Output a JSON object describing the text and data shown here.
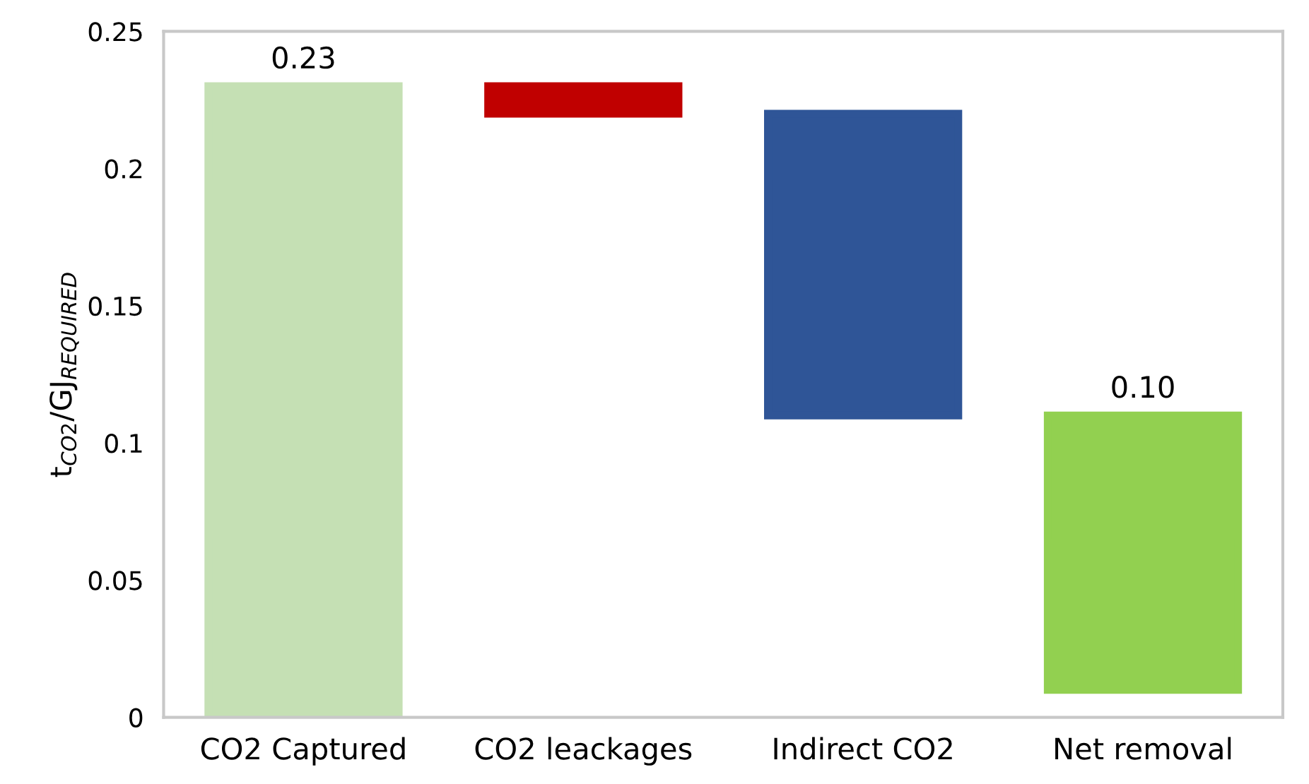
{
  "chart_data": {
    "type": "bar",
    "ylabel": "t$_{CO2}$/GJ$_{REQUIRED}$",
    "categories": [
      "CO2 Captured",
      "CO2 leackages",
      "Indirect CO2",
      "Net removal"
    ],
    "values": [
      0.23,
      0.01,
      0.11,
      0.1
    ],
    "base": [
      0,
      0.22,
      0.11,
      0.01
    ],
    "colors": [
      "#c5e0b4",
      "#c00000",
      "#2f5597",
      "#92d050"
    ],
    "value_labels": [
      "0.23",
      null,
      null,
      "0.10"
    ],
    "ylim": [
      0,
      0.25
    ],
    "yticks": [
      0,
      0.05,
      0.1,
      0.15,
      0.2,
      0.25
    ],
    "grid": false,
    "legend": false
  }
}
